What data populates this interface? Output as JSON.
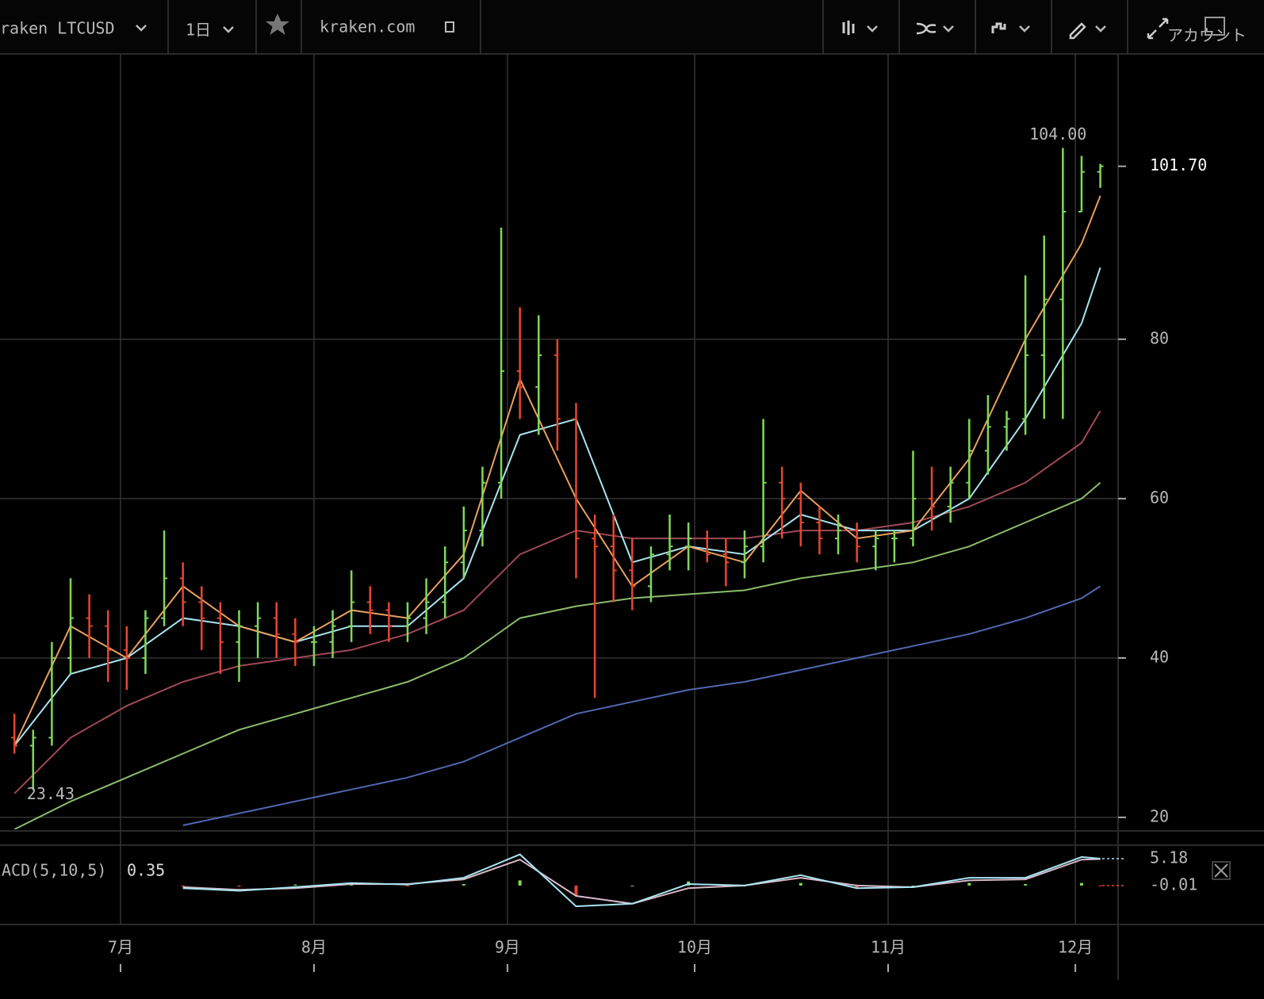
{
  "toolbar": {
    "symbol": "raken LTCUSD",
    "interval": "1日",
    "site": "kraken.com",
    "account": "アカウント"
  },
  "chart_data": [
    {
      "type": "ohlc",
      "x": [
        -17,
        -14,
        -11,
        -8,
        -5,
        -2,
        1,
        4,
        7,
        10,
        13,
        16,
        19,
        22,
        25,
        28,
        31,
        34,
        37,
        40,
        43,
        46,
        49,
        52,
        55,
        58,
        61,
        64,
        67,
        70,
        73,
        76,
        79,
        82,
        85,
        88,
        91,
        94,
        97,
        100,
        103,
        106,
        109,
        112,
        115,
        118,
        121,
        124,
        127,
        130,
        133,
        136,
        139,
        142,
        145,
        148,
        151,
        154,
        157
      ],
      "open": [
        30,
        29,
        30,
        40,
        45,
        44,
        41,
        40,
        45,
        50,
        47,
        45,
        42,
        44,
        45,
        43,
        42,
        42,
        44,
        47,
        46,
        44,
        45,
        47,
        52,
        56,
        62,
        76,
        74,
        78,
        70,
        55,
        54,
        51,
        49,
        53,
        54,
        55,
        53,
        52,
        54,
        62,
        60,
        57,
        55,
        56,
        54,
        55,
        55,
        60,
        59,
        62,
        66,
        69,
        70,
        78,
        85,
        96,
        101
      ],
      "high": [
        33,
        31,
        42,
        50,
        48,
        46,
        44,
        46,
        56,
        52,
        49,
        47,
        46,
        47,
        47,
        45,
        44,
        46,
        51,
        49,
        47,
        47,
        50,
        54,
        59,
        64,
        94,
        84,
        83,
        80,
        72,
        58,
        58,
        55,
        54,
        58,
        57,
        56,
        55,
        56,
        70,
        64,
        62,
        59,
        58,
        57,
        56,
        56,
        66,
        64,
        64,
        70,
        73,
        71,
        88,
        93,
        104,
        103,
        102
      ],
      "low": [
        28,
        23.43,
        29,
        38,
        40,
        37,
        36,
        38,
        44,
        44,
        41,
        38,
        37,
        40,
        40,
        39,
        39,
        40,
        42,
        43,
        42,
        42,
        43,
        45,
        50,
        54,
        60,
        70,
        68,
        66,
        50,
        35,
        47,
        46,
        47,
        51,
        51,
        52,
        49,
        50,
        52,
        55,
        54,
        53,
        53,
        52,
        51,
        52,
        54,
        56,
        57,
        60,
        63,
        66,
        68,
        70,
        70,
        96,
        99
      ],
      "close": [
        29,
        30,
        40,
        45,
        44,
        41,
        40,
        45,
        50,
        47,
        45,
        42,
        44,
        45,
        43,
        42,
        42,
        44,
        47,
        46,
        44,
        45,
        47,
        52,
        56,
        62,
        76,
        74,
        78,
        70,
        55,
        54,
        51,
        49,
        53,
        54,
        55,
        53,
        52,
        54,
        62,
        60,
        57,
        55,
        56,
        54,
        55,
        55,
        60,
        59,
        62,
        66,
        69,
        70,
        78,
        85,
        96,
        101,
        101.7
      ],
      "up_color": "#7ed957",
      "down_color": "#e8462c",
      "overlay_x": [
        -17,
        -8,
        1,
        10,
        19,
        28,
        37,
        46,
        55,
        64,
        73,
        82,
        91,
        100,
        109,
        118,
        127,
        136,
        145,
        154,
        157
      ],
      "overlays": [
        {
          "color": "#e8a060",
          "values": [
            29,
            44,
            40,
            49,
            44,
            42,
            46,
            45,
            53,
            75,
            60,
            49,
            54,
            52,
            61,
            55,
            56,
            65,
            80,
            92,
            98
          ]
        },
        {
          "color": "#a8e4f0",
          "values": [
            29,
            38,
            40,
            45,
            44,
            42,
            44,
            44,
            50,
            68,
            70,
            52,
            54,
            53,
            58,
            56,
            56,
            60,
            70,
            82,
            89
          ]
        },
        {
          "color": "#a04858",
          "values": [
            23,
            30,
            34,
            37,
            39,
            40,
            41,
            43,
            46,
            53,
            56,
            55,
            55,
            55,
            56,
            56,
            57,
            59,
            62,
            67,
            71
          ]
        },
        {
          "color": "#8cbc6c",
          "values": [
            18.5,
            22,
            25,
            28,
            31,
            33,
            35,
            37,
            40,
            45,
            46.5,
            47.5,
            48,
            48.5,
            50,
            51,
            52,
            54,
            57,
            60,
            62
          ]
        },
        {
          "color": "#5068b0",
          "values": [
            null,
            null,
            null,
            19,
            20.5,
            22,
            23.5,
            25,
            27,
            30,
            33,
            34.5,
            36,
            37,
            38.5,
            40,
            41.5,
            43,
            45,
            47.5,
            49
          ]
        }
      ],
      "xlim": [
        -19.31,
        159.85
      ],
      "ylim": [
        18.5,
        115.8
      ],
      "xticks": [
        {
          "value": 0,
          "label": "7月"
        },
        {
          "value": 31,
          "label": "8月"
        },
        {
          "value": 62,
          "label": "9月"
        },
        {
          "value": 92,
          "label": "10月"
        },
        {
          "value": 123,
          "label": "11月"
        },
        {
          "value": 153,
          "label": "12月"
        }
      ],
      "yticks": [
        20,
        40,
        60,
        80
      ],
      "grid": true,
      "high_label": {
        "value": 104,
        "label": "104.00"
      },
      "low_label": 23.43,
      "last_label": {
        "value": 101.7,
        "label": "101.70"
      }
    },
    {
      "type": "macd",
      "title": "ACD(5,10,5)",
      "current": "0.35",
      "x": [
        -17,
        -8,
        1,
        10,
        19,
        28,
        37,
        46,
        55,
        64,
        73,
        82,
        91,
        100,
        109,
        118,
        127,
        136,
        145,
        154,
        157
      ],
      "macd": [
        null,
        null,
        null,
        -0.5,
        -1,
        -0.3,
        0.5,
        0.2,
        1.5,
        6,
        -4,
        -3.5,
        0.3,
        0,
        2,
        -0.5,
        -0.3,
        1.5,
        1.5,
        5.5,
        5.18
      ],
      "signal": [
        null,
        null,
        null,
        -0.3,
        -0.8,
        -0.5,
        0.3,
        0.3,
        1.2,
        5,
        -2,
        -3.5,
        -0.5,
        0,
        1.5,
        0,
        -0.3,
        1,
        1.2,
        5,
        5.1
      ],
      "histogram": [
        null,
        null,
        null,
        -0.2,
        -0.2,
        0.2,
        0.2,
        -0.1,
        0.3,
        1,
        -2,
        0,
        0.8,
        0,
        0.5,
        -0.5,
        0,
        0.5,
        0.3,
        0.5,
        -0.01
      ],
      "macd_color": "#a8e4f0",
      "signal_color": "#d8b8c8",
      "xlim": [
        -19.31,
        159.85
      ],
      "ylim": [
        -7.34,
        7.47
      ],
      "tags": [
        5.18,
        -0.01
      ]
    }
  ]
}
